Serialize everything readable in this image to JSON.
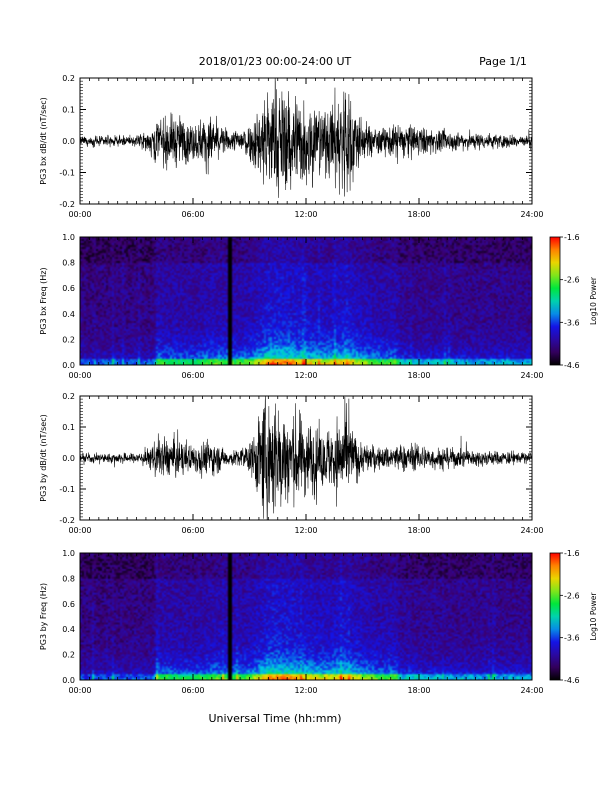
{
  "header": {
    "title": "2018/01/23  00:00-24:00 UT",
    "page": "Page 1/1"
  },
  "xlabel": "Universal Time (hh:mm)",
  "chart_data": [
    {
      "type": "line",
      "ylabel": "PG3 bx dB/dt (nT/sec)",
      "xlim": [
        0,
        24
      ],
      "ylim": [
        -0.2,
        0.2
      ],
      "x_ticks": [
        "00:00",
        "06:00",
        "12:00",
        "18:00",
        "24:00"
      ],
      "y_ticks": [
        "-0.2",
        "-0.1",
        "0.0",
        "0.1",
        "0.2"
      ],
      "y_tick_values": [
        -0.2,
        -0.1,
        0.0,
        0.1,
        0.2
      ],
      "envelope": {
        "hours": [
          0,
          3,
          3.7,
          4,
          5,
          6,
          7,
          7.5,
          8,
          9,
          9.5,
          10,
          10.5,
          11,
          12,
          13,
          13.5,
          14,
          14.5,
          15,
          16,
          17,
          18,
          19,
          20,
          22,
          24
        ],
        "amplitude": [
          0.012,
          0.014,
          0.03,
          0.06,
          0.07,
          0.05,
          0.07,
          0.04,
          0.025,
          0.05,
          0.1,
          0.16,
          0.14,
          0.15,
          0.12,
          0.08,
          0.12,
          0.17,
          0.12,
          0.05,
          0.035,
          0.05,
          0.04,
          0.03,
          0.025,
          0.02,
          0.015
        ]
      }
    },
    {
      "type": "heatmap",
      "ylabel": "PG3 bx Freq (Hz)",
      "xlim": [
        0,
        24
      ],
      "ylim": [
        0,
        1.0
      ],
      "x_ticks": [
        "00:00",
        "06:00",
        "12:00",
        "18:00",
        "24:00"
      ],
      "y_ticks": [
        "0.0",
        "0.2",
        "0.4",
        "0.6",
        "0.8",
        "1.0"
      ],
      "y_tick_values": [
        0.0,
        0.2,
        0.4,
        0.6,
        0.8,
        1.0
      ],
      "colorbar": {
        "label": "Log10 Power",
        "range": [
          -4.6,
          -1.6
        ],
        "ticks": [
          "-1.6",
          "-2.6",
          "-3.6",
          "-4.6"
        ],
        "tick_values": [
          -1.6,
          -2.6,
          -3.6,
          -4.6
        ]
      },
      "data_gap_hour": 7.9
    },
    {
      "type": "line",
      "ylabel": "PG3 by dB/dt (nT/sec)",
      "xlim": [
        0,
        24
      ],
      "ylim": [
        -0.2,
        0.2
      ],
      "x_ticks": [
        "00:00",
        "06:00",
        "12:00",
        "18:00",
        "24:00"
      ],
      "y_ticks": [
        "-0.2",
        "-0.1",
        "0.0",
        "0.1",
        "0.2"
      ],
      "y_tick_values": [
        -0.2,
        -0.1,
        0.0,
        0.1,
        0.2
      ],
      "envelope": {
        "hours": [
          0,
          3,
          3.7,
          4,
          5,
          6,
          7,
          7.5,
          8,
          9,
          9.5,
          10,
          10.5,
          11,
          12,
          13,
          13.5,
          14,
          14.5,
          15,
          16,
          17,
          18,
          19,
          20,
          22,
          24
        ],
        "amplitude": [
          0.012,
          0.014,
          0.03,
          0.05,
          0.055,
          0.04,
          0.05,
          0.03,
          0.02,
          0.04,
          0.12,
          0.19,
          0.16,
          0.14,
          0.11,
          0.07,
          0.1,
          0.13,
          0.08,
          0.04,
          0.03,
          0.04,
          0.035,
          0.03,
          0.025,
          0.02,
          0.015
        ]
      }
    },
    {
      "type": "heatmap",
      "ylabel": "PG3 by Freq (Hz)",
      "xlim": [
        0,
        24
      ],
      "ylim": [
        0,
        1.0
      ],
      "x_ticks": [
        "00:00",
        "06:00",
        "12:00",
        "18:00",
        "24:00"
      ],
      "y_ticks": [
        "0.0",
        "0.2",
        "0.4",
        "0.6",
        "0.8",
        "1.0"
      ],
      "y_tick_values": [
        0.0,
        0.2,
        0.4,
        0.6,
        0.8,
        1.0
      ],
      "colorbar": {
        "label": "Log10 Power",
        "range": [
          -4.6,
          -1.6
        ],
        "ticks": [
          "-1.6",
          "-2.6",
          "-3.6",
          "-4.6"
        ],
        "tick_values": [
          -1.6,
          -2.6,
          -3.6,
          -4.6
        ]
      },
      "data_gap_hour": 7.9
    }
  ]
}
